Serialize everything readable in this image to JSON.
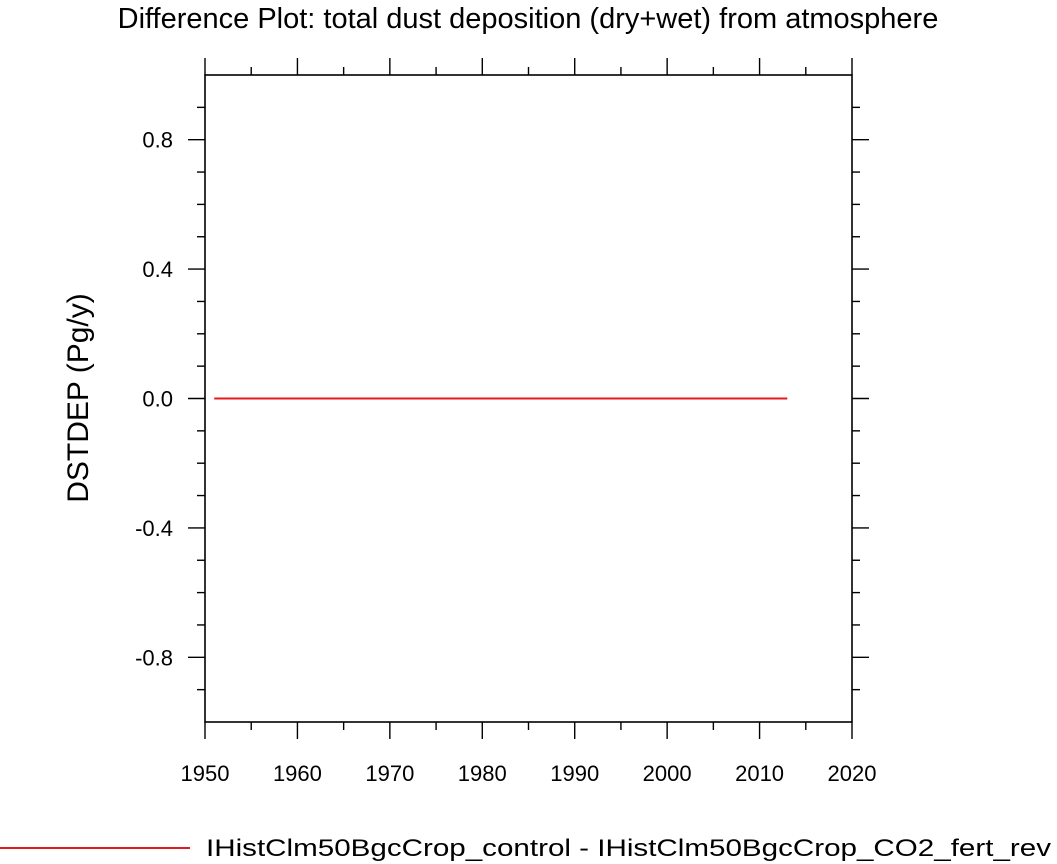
{
  "chart_data": {
    "type": "line",
    "title": "Difference Plot: total dust deposition (dry+wet) from atmosphere",
    "xlabel": "",
    "ylabel": "DSTDEP  (Pg/y)",
    "xlim": [
      1950,
      2020
    ],
    "ylim": [
      -1.0,
      1.0
    ],
    "x_ticks": [
      1950,
      1960,
      1970,
      1980,
      1990,
      2000,
      2010,
      2020
    ],
    "x_tick_labels": [
      "1950",
      "1960",
      "1970",
      "1980",
      "1990",
      "2000",
      "2010",
      "2020"
    ],
    "y_ticks": [
      -0.8,
      -0.4,
      0.0,
      0.4,
      0.8
    ],
    "y_tick_labels": [
      "-0.8",
      "-0.4",
      "0.0",
      "0.4",
      "0.8"
    ],
    "grid": false,
    "legend_position": "bottom",
    "series": [
      {
        "name": "IHistClm50BgcCrop_control - IHistClm50BgcCrop_CO2_fert_rev",
        "color": "#e41a1c",
        "x": [
          1951,
          2013
        ],
        "y": [
          0.0,
          0.0
        ]
      }
    ]
  }
}
